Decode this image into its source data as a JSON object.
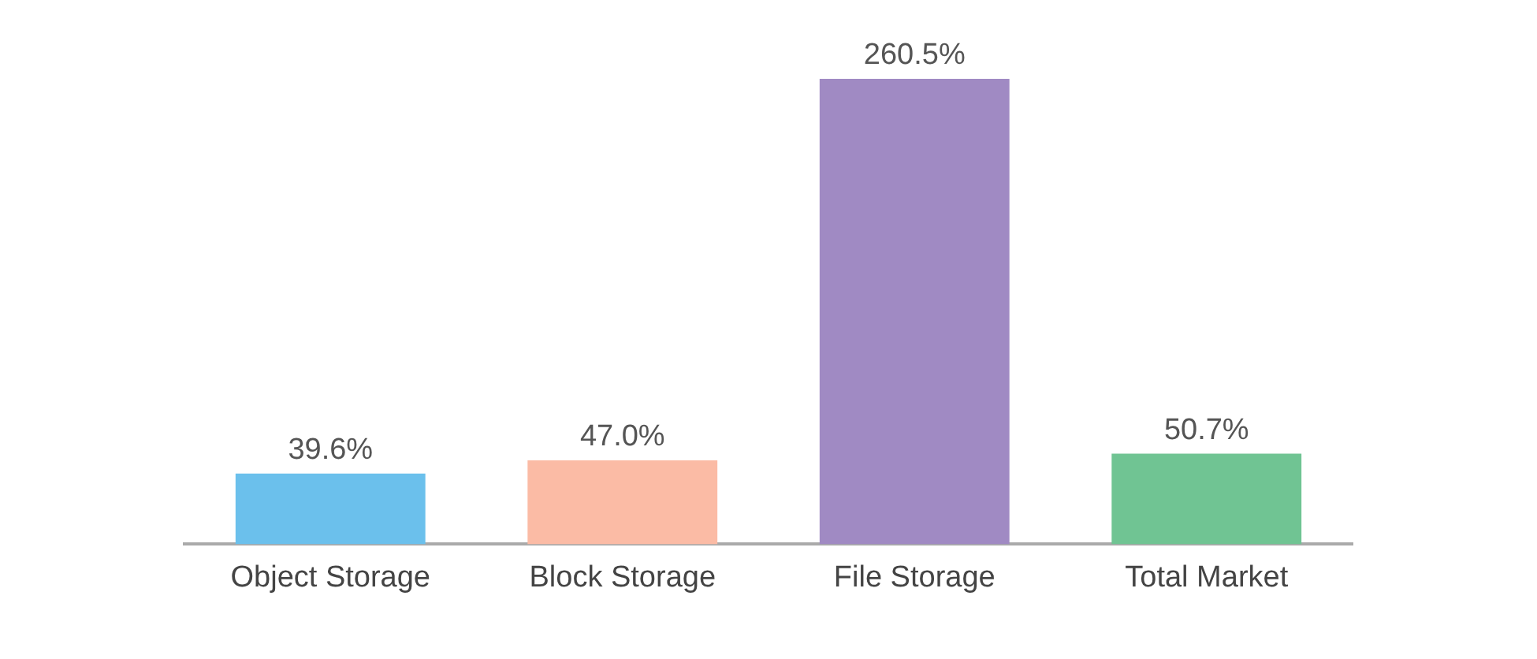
{
  "chart_data": {
    "type": "bar",
    "categories": [
      "Object Storage",
      "Block Storage",
      "File Storage",
      "Total Market"
    ],
    "values": [
      39.6,
      47.0,
      260.5,
      50.7
    ],
    "value_labels": [
      "39.6%",
      "47.0%",
      "260.5%",
      "50.7%"
    ],
    "colors": [
      "#6bc0ec",
      "#fbbba5",
      "#a08ac3",
      "#70c493"
    ],
    "grid": false,
    "legend": false
  }
}
